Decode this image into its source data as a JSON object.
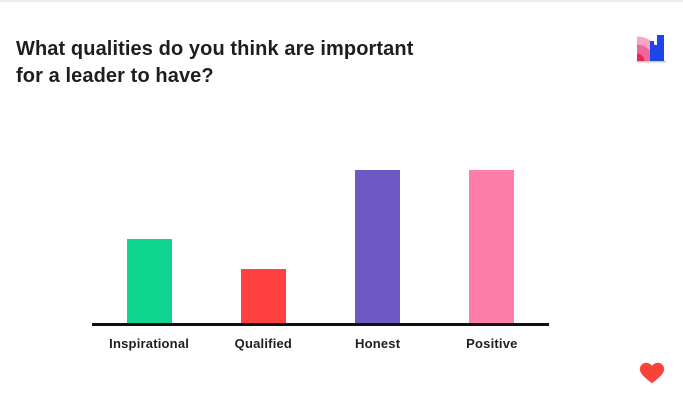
{
  "slide": {
    "title_lines": [
      "What qualities do you think are important",
      "for a leader to have?"
    ],
    "background_color": "#ffffff"
  },
  "icons": {
    "top_right": "mentimeter-logo-icon",
    "bottom_right": "heart-icon",
    "heart_color": "#f9433a",
    "logo_colors": {
      "light_pink": "#f9a3c6",
      "mid_pink": "#f2659c",
      "red": "#e9294b",
      "blue": "#1c47e8",
      "baseline_gray": "#c9cdd6"
    }
  },
  "chart_data": {
    "type": "bar",
    "title": "What qualities do you think are important for a leader to have?",
    "categories": [
      "Inspirational",
      "Qualified",
      "Honest",
      "Positive"
    ],
    "values": [
      55,
      35,
      100,
      100
    ],
    "colors": [
      "#0fd48f",
      "#ff4040",
      "#6e58c3",
      "#fc7ea9"
    ],
    "xlabel": "",
    "ylabel": "",
    "ylim": [
      0,
      100
    ],
    "grid": false,
    "legend": "none",
    "value_labels_shown": false,
    "axis_line_color": "#101010"
  }
}
